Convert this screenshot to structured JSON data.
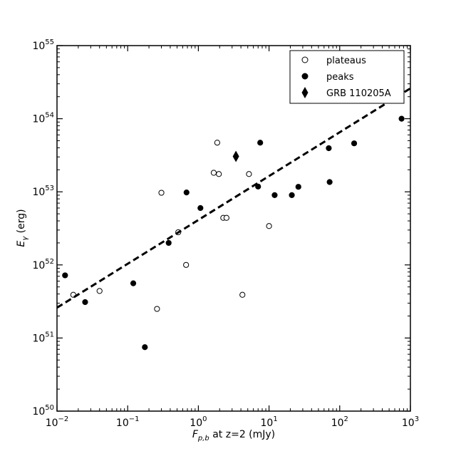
{
  "chart_data": {
    "type": "scatter",
    "xscale": "log",
    "yscale": "log",
    "xlim": [
      0.01,
      1000
    ],
    "ylim": [
      1e+50,
      1e+55
    ],
    "xlabel": "F_{p,b} at z=2 (mJy)",
    "xlabel_parts": {
      "symbol": "F",
      "subscript": "p,b",
      "rest": " at z=2 (mJy)"
    },
    "ylabel": "E_γ (erg)",
    "ylabel_parts": {
      "symbol": "E",
      "subscript": "γ",
      "rest": " (erg)"
    },
    "x_ticks": [
      {
        "value": 0.01,
        "base": "10",
        "exp": "−2"
      },
      {
        "value": 0.1,
        "base": "10",
        "exp": "−1"
      },
      {
        "value": 1,
        "base": "10",
        "exp": "0"
      },
      {
        "value": 10,
        "base": "10",
        "exp": "1"
      },
      {
        "value": 100,
        "base": "10",
        "exp": "2"
      },
      {
        "value": 1000,
        "base": "10",
        "exp": "3"
      }
    ],
    "y_ticks": [
      {
        "value": 1e+50,
        "base": "10",
        "exp": "50"
      },
      {
        "value": 1e+51,
        "base": "10",
        "exp": "51"
      },
      {
        "value": 1e+52,
        "base": "10",
        "exp": "52"
      },
      {
        "value": 1e+53,
        "base": "10",
        "exp": "53"
      },
      {
        "value": 1e+54,
        "base": "10",
        "exp": "54"
      },
      {
        "value": 1e+55,
        "base": "10",
        "exp": "55"
      }
    ],
    "legend_position": "top-right",
    "grid": false,
    "series": [
      {
        "name": "plateaus",
        "marker": "open-circle",
        "points": [
          [
            0.017,
            3.9e+51
          ],
          [
            0.04,
            4.4e+51
          ],
          [
            0.26,
            2.5e+51
          ],
          [
            0.3,
            9.7e+52
          ],
          [
            0.52,
            2.8e+52
          ],
          [
            0.67,
            1e+52
          ],
          [
            1.65,
            1.82e+53
          ],
          [
            1.85,
            4.7e+53
          ],
          [
            1.95,
            1.75e+53
          ],
          [
            2.25,
            4.4e+52
          ],
          [
            2.5,
            4.4e+52
          ],
          [
            4.2,
            3.9e+51
          ],
          [
            5.2,
            1.75e+53
          ],
          [
            10.0,
            3.4e+52
          ]
        ]
      },
      {
        "name": "peaks",
        "marker": "filled-circle",
        "points": [
          [
            0.013,
            7.2e+51
          ],
          [
            0.025,
            3.1e+51
          ],
          [
            0.12,
            5.6e+51
          ],
          [
            0.175,
            7.5e+50
          ],
          [
            0.38,
            2e+52
          ],
          [
            0.68,
            9.8e+52
          ],
          [
            1.07,
            6e+52
          ],
          [
            7.0,
            1.18e+53
          ],
          [
            7.5,
            4.7e+53
          ],
          [
            12.0,
            9e+52
          ],
          [
            21.0,
            9e+52
          ],
          [
            26.0,
            1.17e+53
          ],
          [
            70.0,
            3.95e+53
          ],
          [
            72.0,
            1.36e+53
          ],
          [
            160.0,
            4.6e+53
          ],
          [
            750.0,
            1e+54
          ]
        ]
      },
      {
        "name": "GRB 110205A",
        "marker": "filled-diamond",
        "points": [
          [
            3.4,
            3.05e+53
          ]
        ]
      },
      {
        "name": "fit",
        "style": "dashed-line",
        "points": [
          [
            0.01,
            2.6e+51
          ],
          [
            1000,
            2.6e+54
          ]
        ]
      }
    ]
  }
}
